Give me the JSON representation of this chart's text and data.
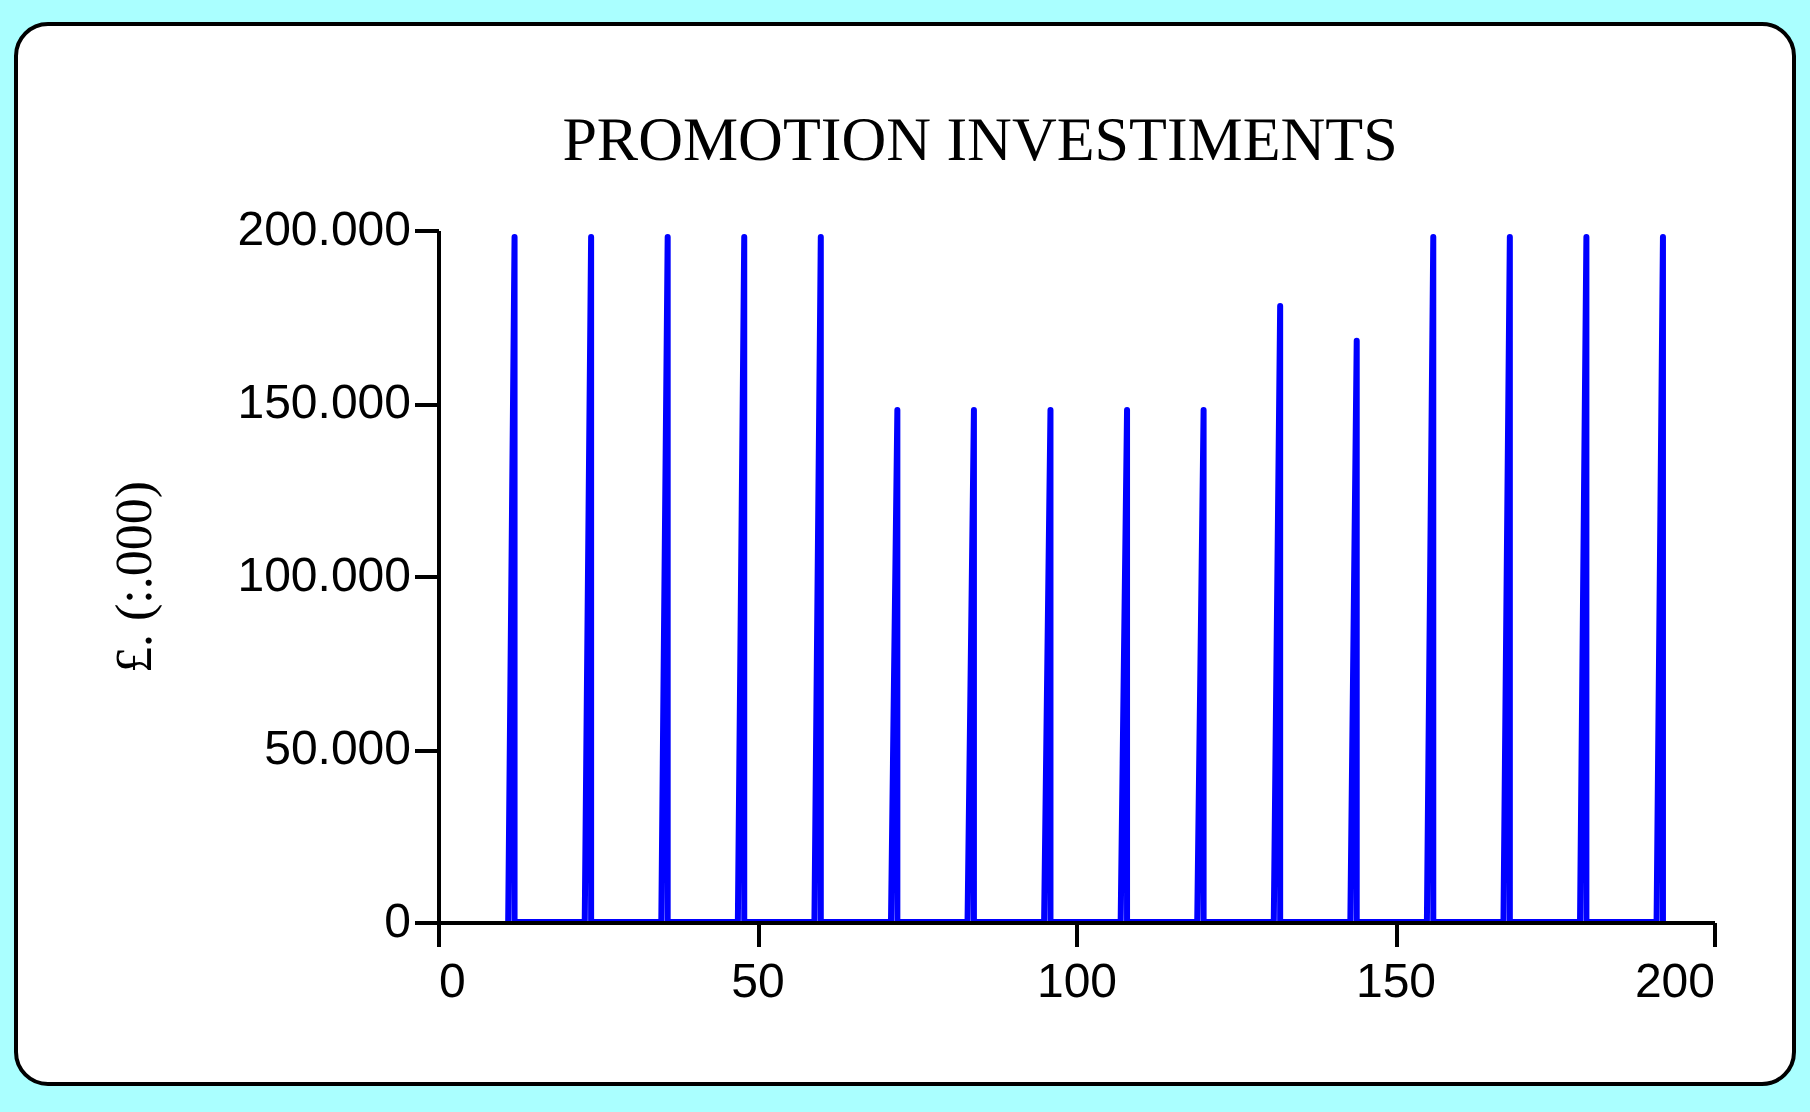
{
  "chart_data": {
    "type": "line",
    "title": "PROMOTION INVESTIMENTS",
    "ylabel": "£. (:.000)",
    "x": [
      11,
      12,
      12,
      23,
      24,
      24,
      35,
      36,
      36,
      47,
      48,
      48,
      59,
      60,
      60,
      71,
      72,
      72,
      83,
      84,
      84,
      95,
      96,
      96,
      107,
      108,
      108,
      119,
      120,
      120,
      131,
      132,
      132,
      143,
      144,
      144,
      155,
      156,
      156,
      167,
      168,
      168,
      179,
      180,
      180,
      191,
      192,
      192
    ],
    "series": [
      {
        "color": "#0000ff",
        "values": [
          0,
          198000,
          0,
          0,
          198000,
          0,
          0,
          198000,
          0,
          0,
          198000,
          0,
          0,
          198000,
          0,
          0,
          148000,
          0,
          0,
          148000,
          0,
          0,
          148000,
          0,
          0,
          148000,
          0,
          0,
          148000,
          0,
          0,
          178000,
          0,
          0,
          168000,
          0,
          0,
          198000,
          0,
          0,
          198000,
          0,
          0,
          198000,
          0,
          0,
          198000,
          0
        ]
      }
    ],
    "xlim": [
      0,
      200
    ],
    "xticks": [
      0,
      50,
      100,
      150,
      200
    ],
    "ylim": [
      0,
      200000
    ],
    "yticks": [
      {
        "value": 0,
        "label": "0"
      },
      {
        "value": 50000,
        "label": "50.000"
      },
      {
        "value": 100000,
        "label": "100.000"
      },
      {
        "value": 150000,
        "label": "150.000"
      },
      {
        "value": 200000,
        "label": "200.000"
      }
    ],
    "grid": false,
    "legend": false,
    "marker": "none",
    "line_style": "solid"
  }
}
